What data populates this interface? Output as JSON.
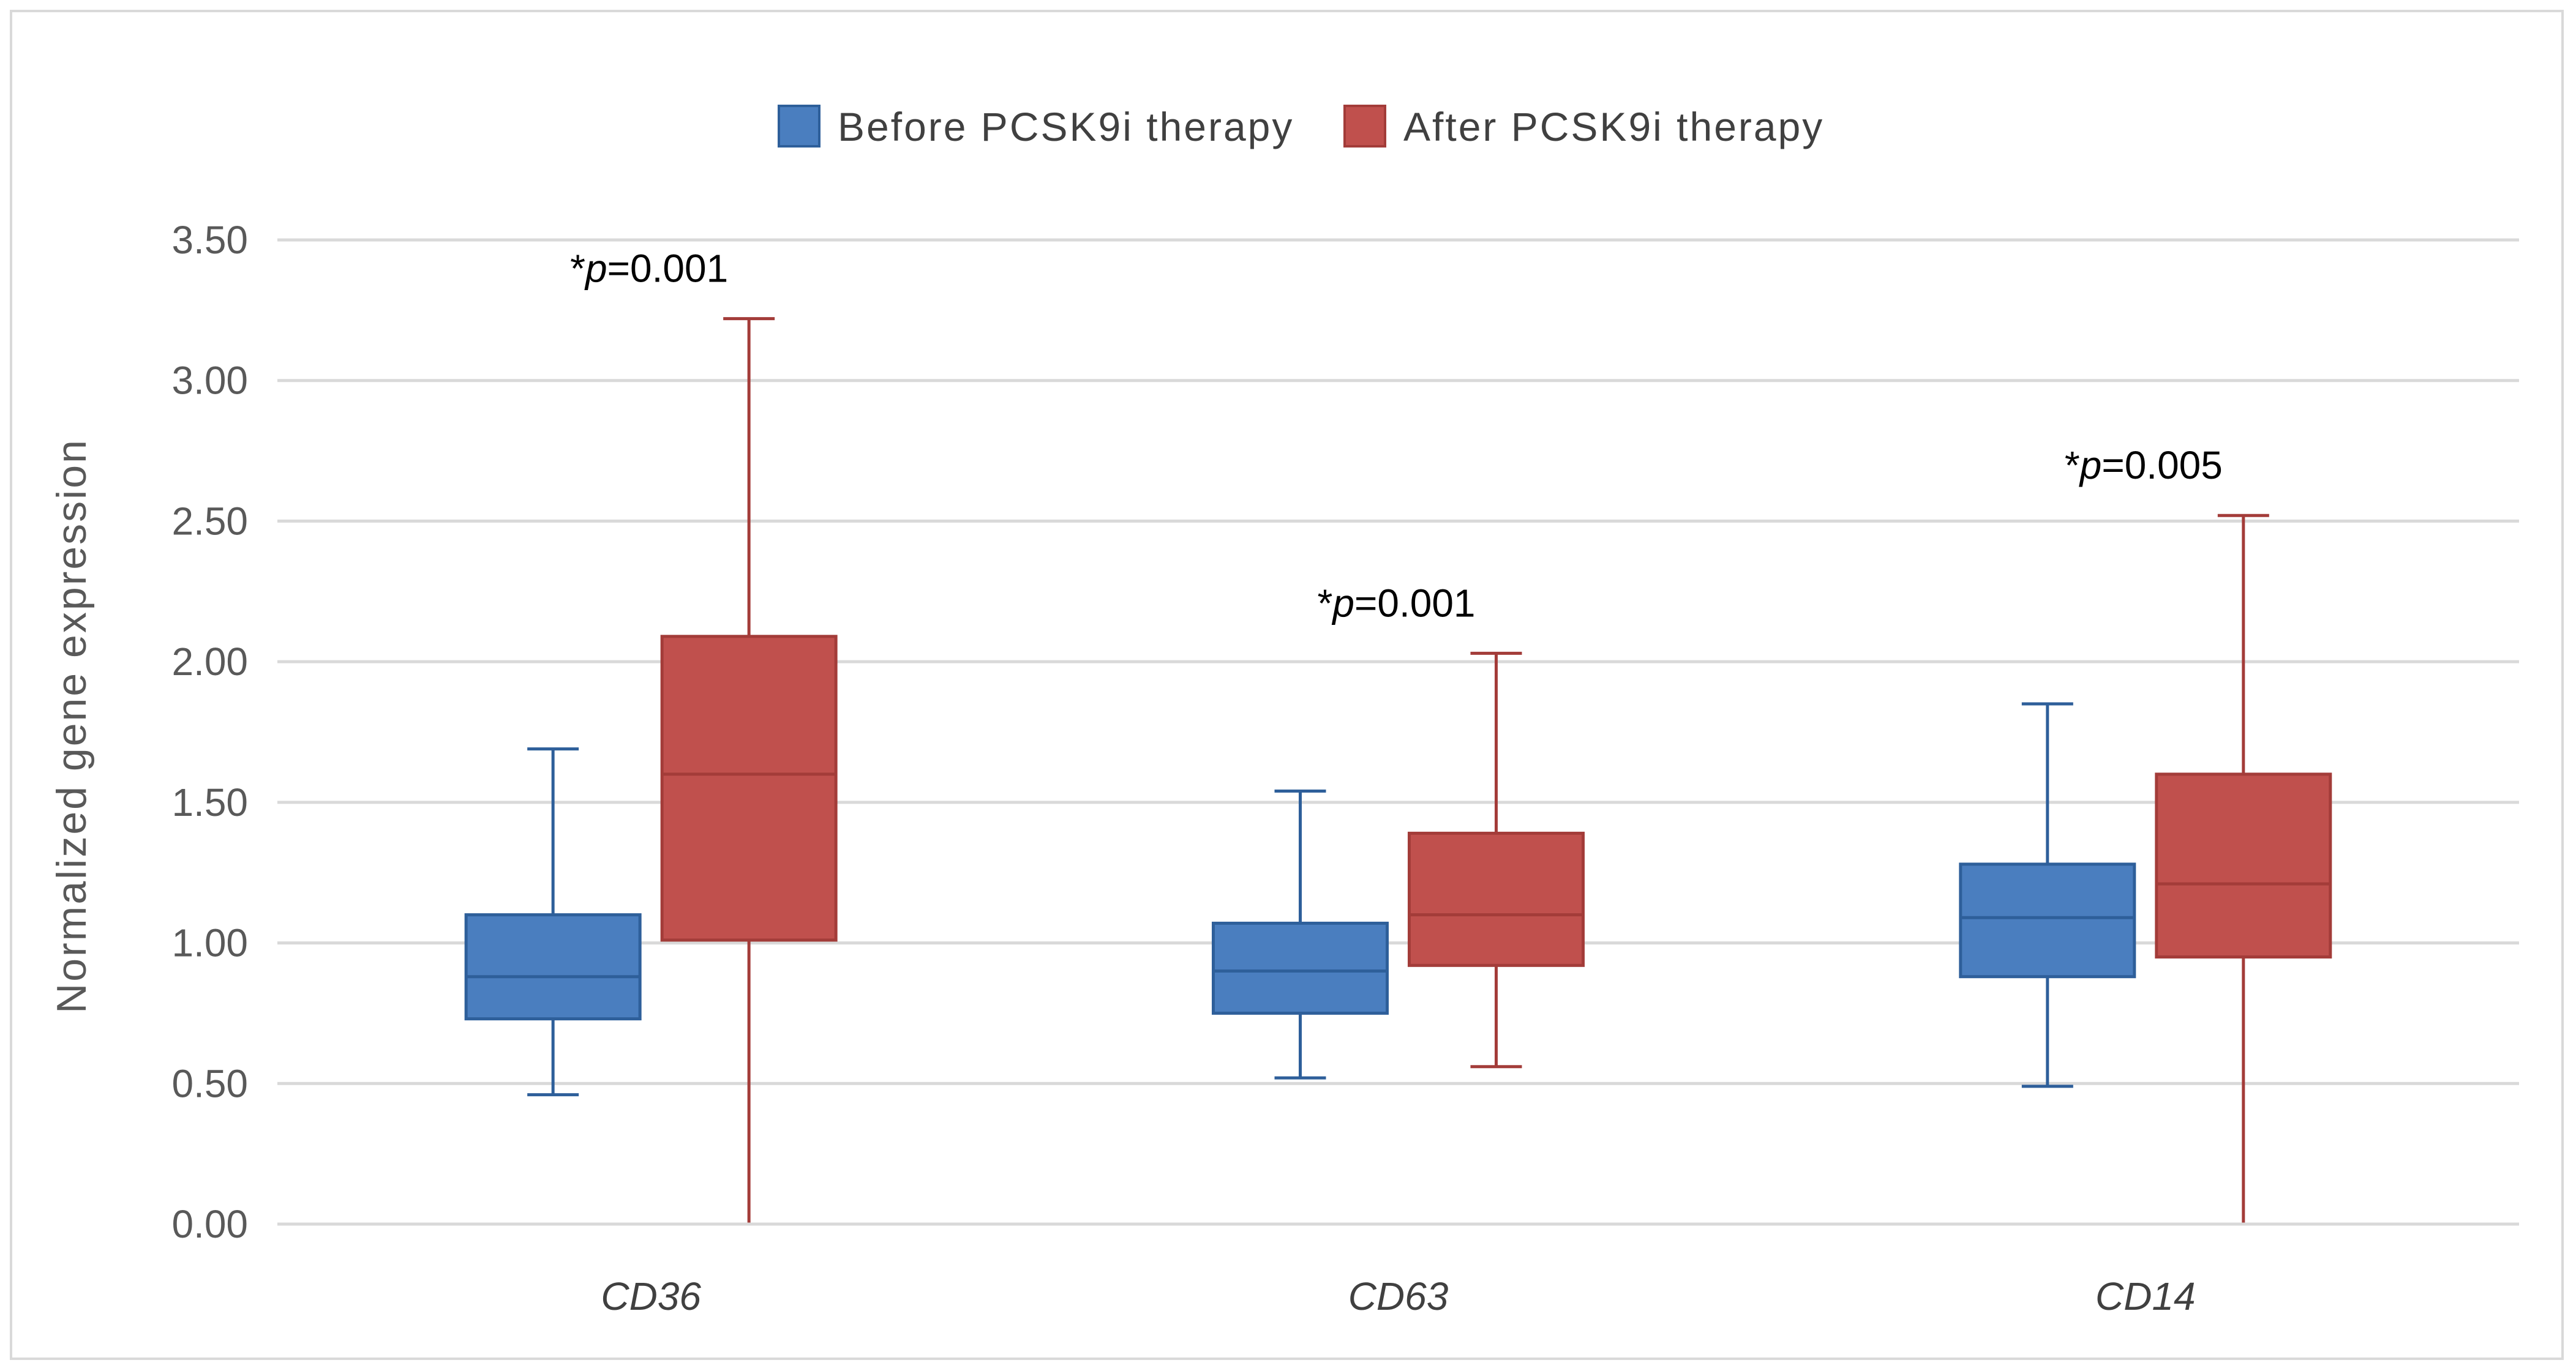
{
  "chart_data": {
    "type": "box",
    "ylabel": "Normalized gene expression",
    "ylim": [
      0,
      3.5
    ],
    "yticks": [
      "0.00",
      "0.50",
      "1.00",
      "1.50",
      "2.00",
      "2.50",
      "3.00",
      "3.50"
    ],
    "grid": true,
    "legend_position": "top",
    "categories": [
      "CD36",
      "CD63",
      "CD14"
    ],
    "series": [
      {
        "name": "Before PCSK9i therapy",
        "color": "#4a7ebf",
        "stroke": "#2e5f9a",
        "boxes": [
          {
            "min": 0.46,
            "q1": 0.73,
            "median": 0.88,
            "q3": 1.1,
            "max": 1.69
          },
          {
            "min": 0.52,
            "q1": 0.75,
            "median": 0.9,
            "q3": 1.07,
            "max": 1.54
          },
          {
            "min": 0.49,
            "q1": 0.88,
            "median": 1.09,
            "q3": 1.28,
            "max": 1.85
          }
        ]
      },
      {
        "name": "After PCSK9i therapy",
        "color": "#c0504d",
        "stroke": "#a33c39",
        "boxes": [
          {
            "min": 0.0,
            "q1": 1.01,
            "median": 1.6,
            "q3": 2.09,
            "max": 3.22
          },
          {
            "min": 0.56,
            "q1": 0.92,
            "median": 1.1,
            "q3": 1.39,
            "max": 2.03
          },
          {
            "min": 0.0,
            "q1": 0.95,
            "median": 1.21,
            "q3": 1.6,
            "max": 2.52
          }
        ]
      }
    ],
    "annotations": [
      {
        "category": "CD36",
        "star": "*",
        "p": "p",
        "rest": "=0.001",
        "y": 3.22
      },
      {
        "category": "CD63",
        "star": "*",
        "p": "p",
        "rest": "=0.001",
        "y": 2.03
      },
      {
        "category": "CD14",
        "star": "*",
        "p": "p",
        "rest": "=0.005",
        "y": 2.52
      }
    ],
    "gridline_color": "#d9d9d9",
    "axis_line_color": "#d9d9d9"
  }
}
